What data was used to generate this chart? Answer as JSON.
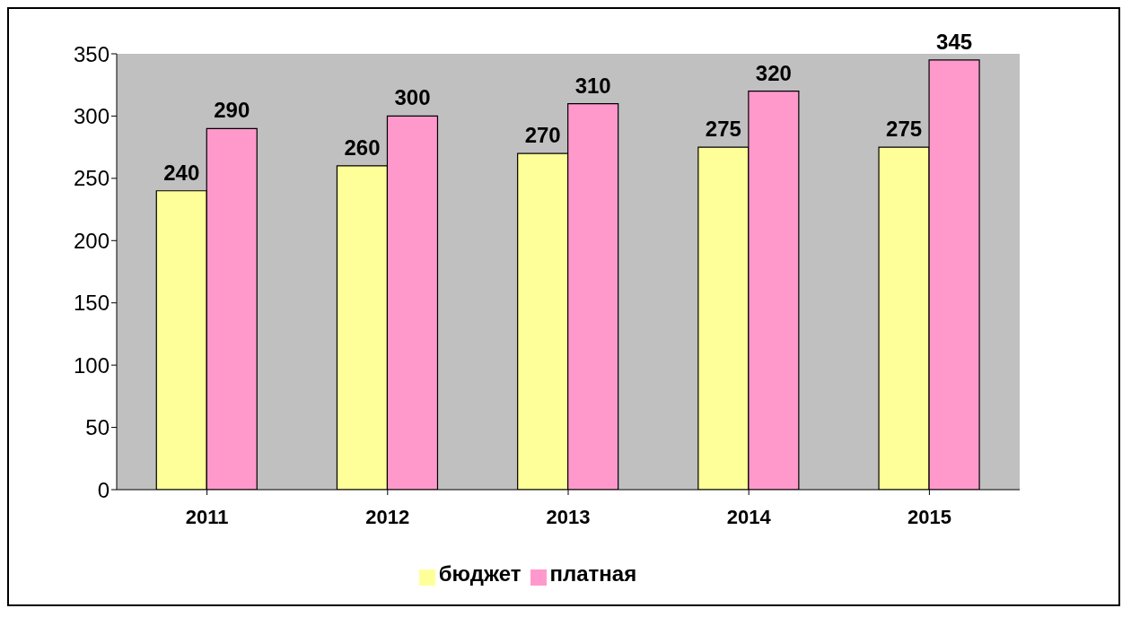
{
  "chart_data": {
    "type": "bar",
    "categories": [
      "2011",
      "2012",
      "2013",
      "2014",
      "2015"
    ],
    "series": [
      {
        "name": "бюджет",
        "color": "#ffff99",
        "values": [
          240,
          260,
          270,
          275,
          275
        ]
      },
      {
        "name": "платная",
        "color": "#ff99cc",
        "values": [
          290,
          300,
          310,
          320,
          345
        ]
      }
    ],
    "ylim": [
      0,
      350
    ],
    "yticks": [
      0,
      50,
      100,
      150,
      200,
      250,
      300,
      350
    ],
    "grid": false,
    "legend": "bottom",
    "data_labels": true
  }
}
